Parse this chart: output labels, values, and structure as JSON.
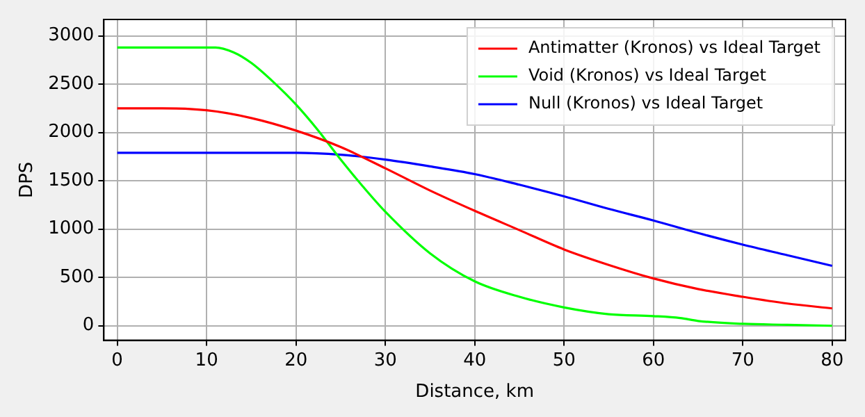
{
  "chart_data": {
    "type": "line",
    "xlabel": "Distance, km",
    "ylabel": "DPS",
    "xlim": [
      -1.5,
      81.5
    ],
    "ylim": [
      -150,
      3170
    ],
    "xticks": [
      0,
      10,
      20,
      30,
      40,
      50,
      60,
      70,
      80
    ],
    "yticks": [
      0,
      500,
      1000,
      1500,
      2000,
      2500,
      3000
    ],
    "grid": true,
    "legend": "top right",
    "marker": "none",
    "line_style": "solid",
    "series": [
      {
        "name": "Antimatter (Kronos) vs Ideal Target",
        "color": "#ff0000",
        "x": [
          0,
          5,
          10,
          15,
          20,
          25,
          30,
          35,
          40,
          45,
          50,
          55,
          60,
          65,
          70,
          75,
          80
        ],
        "values": [
          2250,
          2250,
          2230,
          2150,
          2020,
          1850,
          1630,
          1400,
          1190,
          990,
          790,
          630,
          490,
          380,
          300,
          230,
          180
        ]
      },
      {
        "name": "Void (Kronos) vs Ideal Target",
        "color": "#00ff00",
        "x": [
          0,
          5,
          11,
          13,
          15,
          17.5,
          20,
          22.5,
          25,
          27.5,
          30,
          35,
          40,
          45,
          50,
          55,
          60,
          63,
          65,
          70,
          75,
          80
        ],
        "values": [
          2880,
          2880,
          2880,
          2830,
          2720,
          2520,
          2290,
          2020,
          1720,
          1440,
          1180,
          750,
          460,
          300,
          190,
          120,
          100,
          80,
          50,
          20,
          10,
          0
        ]
      },
      {
        "name": "Null (Kronos) vs Ideal Target",
        "color": "#0000ff",
        "x": [
          0,
          5,
          10,
          15,
          20,
          25,
          30,
          35,
          40,
          45,
          50,
          55,
          60,
          65,
          70,
          75,
          80
        ],
        "values": [
          1790,
          1790,
          1790,
          1790,
          1790,
          1770,
          1720,
          1650,
          1570,
          1460,
          1340,
          1210,
          1090,
          960,
          840,
          730,
          620
        ]
      }
    ]
  }
}
